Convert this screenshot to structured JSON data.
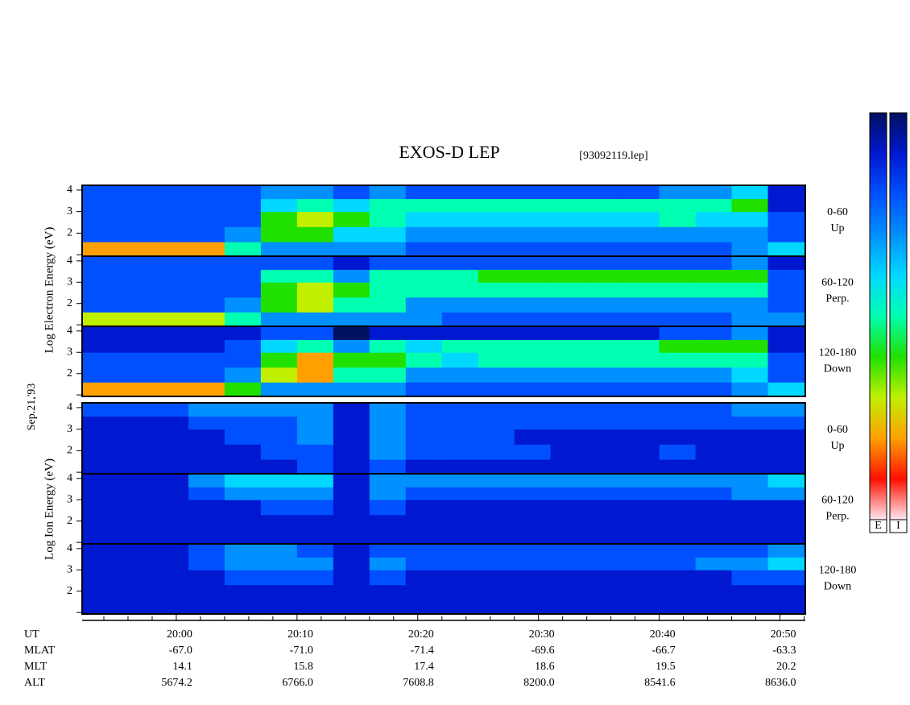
{
  "header": {
    "title": "EXOS-D LEP",
    "file": "[93092119.lep]"
  },
  "labels": {
    "electron": "Log  Electron  Energy (eV)",
    "ion": "Log  Ion  Energy (eV)",
    "date": "Sep.21,'93"
  },
  "time_axis": {
    "xlim": [
      1192.2,
      1252.1
    ],
    "xticks": [
      {
        "value": 1200,
        "label": "20:00"
      },
      {
        "value": 1210,
        "label": "20:10"
      },
      {
        "value": 1220,
        "label": "20:20"
      },
      {
        "value": 1230,
        "label": "20:30"
      },
      {
        "value": 1240,
        "label": "20:40"
      },
      {
        "value": 1250,
        "label": "20:50"
      }
    ],
    "xminor": [
      1194,
      1196,
      1198,
      1202,
      1204,
      1206,
      1208,
      1212,
      1214,
      1216,
      1218,
      1222,
      1224,
      1226,
      1228,
      1232,
      1234,
      1236,
      1238,
      1242,
      1244,
      1246,
      1248,
      1252
    ],
    "xbins": [
      1192.2,
      1195,
      1198,
      1201,
      1204,
      1207,
      1210,
      1213,
      1216,
      1219,
      1222,
      1225,
      1228,
      1231,
      1234,
      1237,
      1240,
      1243,
      1246,
      1249,
      1252.1
    ]
  },
  "orbit": {
    "rows": [
      "UT",
      "MLAT",
      "MLT",
      "ALT"
    ],
    "MLAT": [
      "-67.0",
      "-71.0",
      "-71.4",
      "-69.6",
      "-66.7",
      "-63.3"
    ],
    "MLT": [
      "14.1",
      "15.8",
      "17.4",
      "18.6",
      "19.5",
      "20.2"
    ],
    "ALT": [
      "5674.2",
      "6766.0",
      "7608.8",
      "8200.0",
      "8541.6",
      "8636.0"
    ]
  },
  "colorbar": {
    "colors": [
      "#001060",
      "#0018d0",
      "#0050ff",
      "#0090ff",
      "#00d8ff",
      "#00ffb0",
      "#20e000",
      "#c0f000",
      "#ffa000",
      "#ff1000",
      "#ffe8f0"
    ],
    "labels": [
      "E",
      "I"
    ]
  },
  "chart_data": [
    {
      "type": "heatmap",
      "angle": "0-60",
      "direction": "Up",
      "ylim": [
        0.93,
        4.22
      ],
      "yticks": [
        2,
        3,
        4
      ],
      "yminor": [
        1
      ],
      "ybins": [
        0.93,
        1.6,
        2.3,
        3.0,
        3.6,
        4.22
      ],
      "values": [
        [
          8,
          8,
          8,
          8,
          5,
          3,
          3,
          3,
          3,
          2,
          2,
          2,
          2,
          2,
          2,
          2,
          2,
          2,
          3,
          4
        ],
        [
          2,
          2,
          2,
          2,
          3,
          6,
          6,
          4,
          4,
          3,
          3,
          3,
          3,
          3,
          3,
          3,
          3,
          3,
          3,
          2
        ],
        [
          2,
          2,
          2,
          2,
          2,
          6,
          7,
          6,
          5,
          4,
          4,
          4,
          4,
          4,
          4,
          4,
          5,
          4,
          4,
          2
        ],
        [
          2,
          2,
          2,
          2,
          2,
          4,
          5,
          4,
          5,
          5,
          5,
          5,
          5,
          5,
          5,
          5,
          5,
          5,
          6,
          1
        ],
        [
          2,
          2,
          2,
          2,
          2,
          3,
          3,
          2,
          3,
          2,
          2,
          2,
          2,
          2,
          2,
          2,
          3,
          3,
          4,
          1
        ]
      ]
    },
    {
      "type": "heatmap",
      "angle": "60-120",
      "direction": "Perp.",
      "ylim": [
        0.93,
        4.22
      ],
      "yticks": [
        2,
        3,
        4
      ],
      "yminor": [
        1
      ],
      "ybins": [
        0.93,
        1.6,
        2.3,
        3.0,
        3.6,
        4.22
      ],
      "values": [
        [
          7,
          7,
          7,
          7,
          5,
          3,
          3,
          3,
          3,
          3,
          2,
          2,
          2,
          2,
          2,
          2,
          2,
          2,
          3,
          3
        ],
        [
          2,
          2,
          2,
          2,
          3,
          6,
          7,
          5,
          5,
          3,
          3,
          3,
          3,
          3,
          3,
          3,
          3,
          3,
          3,
          2
        ],
        [
          2,
          2,
          2,
          2,
          2,
          6,
          7,
          6,
          5,
          5,
          5,
          5,
          5,
          5,
          5,
          5,
          5,
          5,
          5,
          2
        ],
        [
          2,
          2,
          2,
          2,
          2,
          5,
          5,
          3,
          5,
          5,
          5,
          6,
          6,
          6,
          6,
          6,
          6,
          6,
          6,
          2
        ],
        [
          2,
          2,
          2,
          2,
          2,
          2,
          2,
          1,
          2,
          2,
          2,
          2,
          2,
          2,
          2,
          2,
          2,
          2,
          3,
          1
        ]
      ]
    },
    {
      "type": "heatmap",
      "angle": "120-180",
      "direction": "Down",
      "ylim": [
        0.93,
        4.22
      ],
      "yticks": [
        2,
        3,
        4
      ],
      "yminor": [
        1
      ],
      "ybins": [
        0.93,
        1.6,
        2.3,
        3.0,
        3.6,
        4.22
      ],
      "values": [
        [
          8,
          8,
          8,
          8,
          6,
          3,
          3,
          3,
          3,
          2,
          2,
          2,
          2,
          2,
          2,
          2,
          2,
          2,
          3,
          4
        ],
        [
          2,
          2,
          2,
          2,
          3,
          7,
          8,
          5,
          5,
          3,
          3,
          3,
          3,
          3,
          3,
          3,
          3,
          3,
          4,
          2
        ],
        [
          2,
          2,
          2,
          2,
          2,
          6,
          8,
          6,
          6,
          5,
          4,
          5,
          5,
          5,
          5,
          5,
          5,
          5,
          5,
          2
        ],
        [
          1,
          1,
          1,
          1,
          2,
          4,
          5,
          3,
          5,
          4,
          5,
          5,
          5,
          5,
          5,
          5,
          6,
          6,
          6,
          1
        ],
        [
          1,
          1,
          1,
          1,
          1,
          2,
          2,
          0,
          1,
          1,
          1,
          1,
          1,
          1,
          1,
          1,
          2,
          2,
          3,
          1
        ]
      ]
    },
    {
      "type": "heatmap",
      "angle": "0-60",
      "direction": "Up",
      "ylim": [
        0.93,
        4.22
      ],
      "yticks": [
        2,
        3,
        4
      ],
      "yminor": [
        1
      ],
      "ybins": [
        0.93,
        1.6,
        2.3,
        3.0,
        3.6,
        4.22
      ],
      "values": [
        [
          1,
          1,
          1,
          1,
          1,
          1,
          2,
          1,
          2,
          1,
          1,
          1,
          1,
          1,
          1,
          1,
          1,
          1,
          1,
          1
        ],
        [
          1,
          1,
          1,
          1,
          1,
          2,
          2,
          1,
          3,
          2,
          2,
          2,
          2,
          1,
          1,
          1,
          2,
          1,
          1,
          1
        ],
        [
          1,
          1,
          1,
          1,
          2,
          2,
          3,
          1,
          3,
          2,
          2,
          2,
          1,
          1,
          1,
          1,
          1,
          1,
          1,
          1
        ],
        [
          1,
          1,
          1,
          2,
          2,
          2,
          3,
          1,
          3,
          2,
          2,
          2,
          2,
          2,
          2,
          2,
          2,
          2,
          2,
          2
        ],
        [
          2,
          2,
          2,
          3,
          3,
          3,
          3,
          1,
          3,
          2,
          2,
          2,
          2,
          2,
          2,
          2,
          2,
          2,
          3,
          3
        ]
      ]
    },
    {
      "type": "heatmap",
      "angle": "60-120",
      "direction": "Perp.",
      "ylim": [
        0.93,
        4.22
      ],
      "yticks": [
        2,
        3,
        4
      ],
      "yminor": [
        1
      ],
      "ybins": [
        0.93,
        1.6,
        2.3,
        3.0,
        3.6,
        4.22
      ],
      "values": [
        [
          1,
          1,
          1,
          1,
          1,
          1,
          1,
          1,
          1,
          1,
          1,
          1,
          1,
          1,
          1,
          1,
          1,
          1,
          1,
          1
        ],
        [
          1,
          1,
          1,
          1,
          1,
          1,
          1,
          1,
          1,
          1,
          1,
          1,
          1,
          1,
          1,
          1,
          1,
          1,
          1,
          1
        ],
        [
          1,
          1,
          1,
          1,
          1,
          2,
          2,
          1,
          2,
          1,
          1,
          1,
          1,
          1,
          1,
          1,
          1,
          1,
          1,
          1
        ],
        [
          1,
          1,
          1,
          2,
          3,
          3,
          3,
          1,
          3,
          2,
          2,
          2,
          2,
          2,
          2,
          2,
          2,
          2,
          3,
          3
        ],
        [
          1,
          1,
          1,
          3,
          4,
          4,
          4,
          1,
          3,
          3,
          3,
          3,
          3,
          3,
          3,
          3,
          3,
          3,
          3,
          4
        ]
      ]
    },
    {
      "type": "heatmap",
      "angle": "120-180",
      "direction": "Down",
      "ylim": [
        0.93,
        4.22
      ],
      "yticks": [
        2,
        3,
        4
      ],
      "yminor": [
        1
      ],
      "ybins": [
        0.93,
        1.6,
        2.3,
        3.0,
        3.6,
        4.22
      ],
      "values": [
        [
          1,
          1,
          1,
          1,
          1,
          1,
          1,
          1,
          1,
          1,
          1,
          1,
          1,
          1,
          1,
          1,
          1,
          1,
          1,
          1
        ],
        [
          1,
          1,
          1,
          1,
          1,
          1,
          1,
          1,
          1,
          1,
          1,
          1,
          1,
          1,
          1,
          1,
          1,
          1,
          1,
          1
        ],
        [
          1,
          1,
          1,
          1,
          2,
          2,
          2,
          1,
          2,
          1,
          1,
          1,
          1,
          1,
          1,
          1,
          1,
          1,
          2,
          2
        ],
        [
          1,
          1,
          1,
          2,
          3,
          3,
          3,
          1,
          3,
          2,
          2,
          2,
          2,
          2,
          2,
          2,
          2,
          3,
          3,
          4
        ],
        [
          1,
          1,
          1,
          2,
          3,
          3,
          2,
          1,
          2,
          2,
          2,
          2,
          2,
          2,
          2,
          2,
          2,
          2,
          2,
          3
        ]
      ]
    }
  ]
}
